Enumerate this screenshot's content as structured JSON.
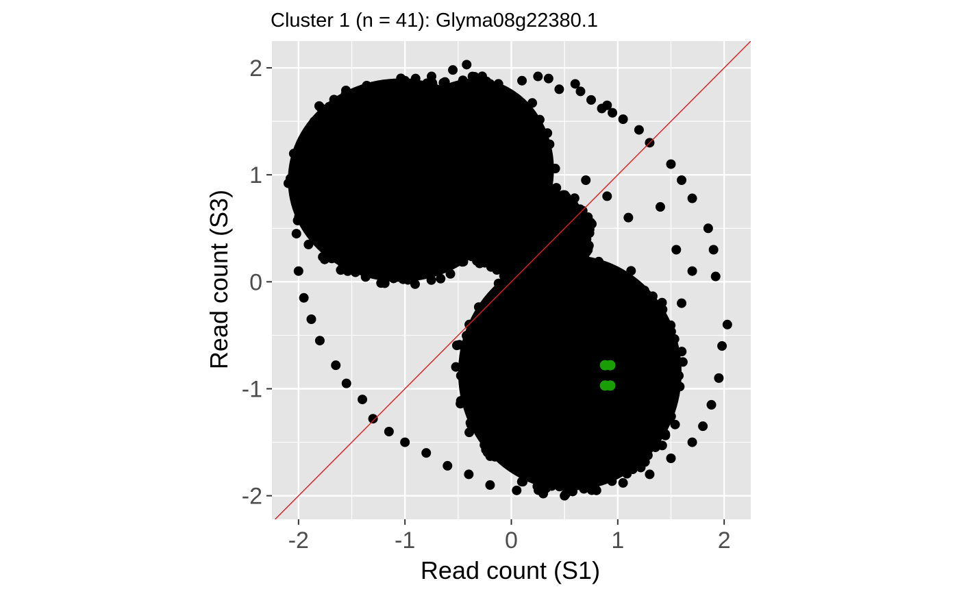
{
  "chart_data": {
    "type": "scatter",
    "title": "Cluster 1 (n = 41): Glyma08g22380.1",
    "xlabel": "Read count (S1)",
    "ylabel": "Read count (S3)",
    "xlim": [
      -2.25,
      2.25
    ],
    "ylim": [
      -2.22,
      2.25
    ],
    "xticks": [
      -2,
      -1,
      0,
      1,
      2
    ],
    "yticks": [
      -2,
      -1,
      0,
      1,
      2
    ],
    "xtick_labels": [
      "-2",
      "-1",
      "0",
      "1",
      "2"
    ],
    "ytick_labels": [
      "-2",
      "-1",
      "0",
      "1",
      "2"
    ],
    "grid": true,
    "reference_line": {
      "slope": 1,
      "intercept": 0,
      "color": "#e31a1c"
    },
    "colors": {
      "background": "#e5e5e5",
      "grid": "#ffffff",
      "points": "#000000",
      "highlight": "#1a9e06"
    },
    "series": [
      {
        "role": "background",
        "color": "#000000",
        "description_regions": [
          {
            "cx": -1.05,
            "cy": 0.95,
            "rx": 1.05,
            "ry": 0.95
          },
          {
            "cx": -0.35,
            "cy": 1.05,
            "rx": 0.75,
            "ry": 0.85
          },
          {
            "cx": 0.55,
            "cy": -0.85,
            "rx": 1.05,
            "ry": 1.1
          },
          {
            "cx": 0.2,
            "cy": 0.45,
            "rx": 0.55,
            "ry": 0.45
          }
        ],
        "points": [
          [
            -0.42,
            2.03
          ],
          [
            -0.55,
            1.98
          ],
          [
            -0.75,
            1.92
          ],
          [
            0.25,
            1.92
          ],
          [
            0.35,
            1.9
          ],
          [
            0.6,
            1.85
          ],
          [
            0.65,
            1.78
          ],
          [
            -1.3,
            1.75
          ],
          [
            -1.45,
            1.65
          ],
          [
            0.95,
            1.58
          ],
          [
            0.85,
            1.62
          ],
          [
            1.05,
            1.52
          ],
          [
            1.2,
            1.42
          ],
          [
            1.3,
            1.3
          ],
          [
            1.5,
            1.1
          ],
          [
            1.6,
            0.95
          ],
          [
            1.7,
            0.78
          ],
          [
            1.85,
            0.5
          ],
          [
            1.9,
            0.3
          ],
          [
            1.92,
            0.05
          ],
          [
            2.03,
            -0.4
          ],
          [
            1.98,
            -0.6
          ],
          [
            1.95,
            -0.9
          ],
          [
            1.88,
            -1.15
          ],
          [
            1.8,
            -1.35
          ],
          [
            1.7,
            -1.5
          ],
          [
            1.5,
            -1.65
          ],
          [
            1.3,
            -1.8
          ],
          [
            1.05,
            -1.88
          ],
          [
            0.8,
            -1.95
          ],
          [
            0.5,
            -2.0
          ],
          [
            0.3,
            -1.98
          ],
          [
            0.05,
            -1.95
          ],
          [
            -0.2,
            -1.9
          ],
          [
            -0.4,
            -1.8
          ],
          [
            -0.6,
            -1.72
          ],
          [
            -0.8,
            -1.6
          ],
          [
            -1.0,
            -1.5
          ],
          [
            -1.15,
            -1.4
          ],
          [
            -1.3,
            -1.28
          ],
          [
            -1.4,
            -1.1
          ],
          [
            -1.55,
            -0.95
          ],
          [
            -1.65,
            -0.78
          ],
          [
            -1.8,
            -0.55
          ],
          [
            -1.88,
            -0.35
          ],
          [
            -1.95,
            -0.15
          ],
          [
            -2.0,
            0.1
          ],
          [
            -2.02,
            0.45
          ],
          [
            -2.0,
            0.7
          ],
          [
            -1.95,
            0.95
          ],
          [
            -1.88,
            1.15
          ],
          [
            -1.8,
            1.3
          ],
          [
            -1.7,
            1.45
          ],
          [
            -1.6,
            1.55
          ],
          [
            -1.55,
            1.62
          ],
          [
            -1.2,
            1.8
          ],
          [
            -1.0,
            1.88
          ],
          [
            -0.9,
            1.9
          ],
          [
            -0.2,
            1.85
          ],
          [
            0.1,
            1.88
          ],
          [
            0.45,
            1.8
          ],
          [
            0.75,
            1.7
          ],
          [
            0.9,
            1.65
          ],
          [
            0.7,
            0.95
          ],
          [
            0.9,
            0.8
          ],
          [
            1.1,
            0.6
          ],
          [
            1.4,
            0.7
          ],
          [
            1.55,
            0.3
          ],
          [
            1.7,
            0.1
          ],
          [
            1.6,
            -0.2
          ]
        ]
      },
      {
        "role": "cluster",
        "name": "Cluster 1",
        "color": "#1a9e06",
        "points": [
          [
            0.88,
            -0.78
          ],
          [
            0.93,
            -0.78
          ],
          [
            0.88,
            -0.97
          ],
          [
            0.93,
            -0.97
          ]
        ]
      }
    ]
  }
}
